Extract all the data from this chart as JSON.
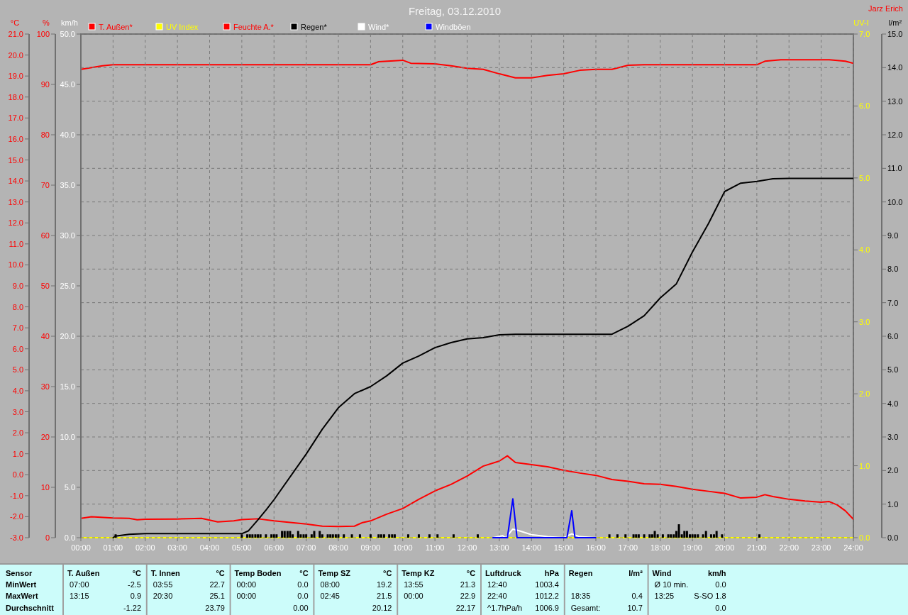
{
  "chart_data": [
    {
      "type": "line",
      "title": "Freitag, 03.12.2010",
      "xlim": [
        0,
        24
      ],
      "tick_labels": "y",
      "legend": "top",
      "marker": "none",
      "line_style": "solid",
      "ylabel": "°C",
      "ylim": [
        -3,
        21
      ],
      "yticks": [
        {
          "value": -3,
          "label": "-3.0"
        },
        {
          "value": -2,
          "label": "-2.0"
        },
        {
          "value": -1,
          "label": "-1.0"
        },
        {
          "value": 0,
          "label": "0.0"
        },
        {
          "value": 1,
          "label": "1.0"
        },
        {
          "value": 2,
          "label": "2.0"
        },
        {
          "value": 3,
          "label": "3.0"
        },
        {
          "value": 4,
          "label": "4.0"
        },
        {
          "value": 5,
          "label": "5.0"
        },
        {
          "value": 6,
          "label": "6.0"
        },
        {
          "value": 7,
          "label": "7.0"
        },
        {
          "value": 8,
          "label": "8.0"
        },
        {
          "value": 9,
          "label": "9.0"
        },
        {
          "value": 10,
          "label": "10.0"
        },
        {
          "value": 11,
          "label": "11.0"
        },
        {
          "value": 12,
          "label": "12.0"
        },
        {
          "value": 13,
          "label": "13.0"
        },
        {
          "value": 14,
          "label": "14.0"
        },
        {
          "value": 15,
          "label": "15.0"
        },
        {
          "value": 16,
          "label": "16.0"
        },
        {
          "value": 17,
          "label": "17.0"
        },
        {
          "value": 18,
          "label": "18.0"
        },
        {
          "value": 19,
          "label": "19.0"
        },
        {
          "value": 20,
          "label": "20.0"
        },
        {
          "value": 21,
          "label": "21.0"
        }
      ],
      "y2label": "UV-I",
      "y2lim": [
        0,
        7
      ],
      "y2ticks": [
        {
          "value": 0,
          "label": "0.0"
        },
        {
          "value": 1,
          "label": "1.0"
        },
        {
          "value": 2,
          "label": "2.0"
        },
        {
          "value": 3,
          "label": "3.0"
        },
        {
          "value": 4,
          "label": "4.0"
        },
        {
          "value": 5,
          "label": "5.0"
        },
        {
          "value": 6,
          "label": "6.0"
        },
        {
          "value": 7,
          "label": "7.0"
        }
      ],
      "y3label": "%",
      "y3lim": [
        0,
        100
      ],
      "y3ticks": [
        0,
        10,
        20,
        30,
        40,
        50,
        60,
        70,
        80,
        90,
        100
      ],
      "series": [
        {
          "name": "T. Außen*",
          "color": "#ff0000",
          "x": [
            0,
            0.33,
            1,
            1.5,
            1.75,
            2,
            3,
            3.75,
            4.25,
            4.75,
            5,
            5.5,
            6,
            6.5,
            7,
            7.5,
            8,
            8.5,
            8.75,
            9,
            9.5,
            10,
            10.5,
            11,
            11.5,
            12,
            12.5,
            13,
            13.25,
            13.5,
            14,
            14.5,
            15,
            15.5,
            16,
            16.5,
            17,
            17.5,
            18,
            18.5,
            19,
            19.5,
            20,
            20.5,
            21,
            21.25,
            21.5,
            22,
            22.5,
            23,
            23.25,
            23.5,
            23.75,
            24
          ],
          "values": [
            -2.08,
            -2.0,
            -2.06,
            -2.08,
            -2.15,
            -2.12,
            -2.11,
            -2.08,
            -2.25,
            -2.2,
            -2.14,
            -2.1,
            -2.2,
            -2.27,
            -2.35,
            -2.45,
            -2.47,
            -2.45,
            -2.28,
            -2.2,
            -1.88,
            -1.61,
            -1.17,
            -0.77,
            -0.46,
            -0.06,
            0.41,
            0.65,
            0.9,
            0.58,
            0.48,
            0.38,
            0.21,
            0.08,
            -0.03,
            -0.23,
            -0.31,
            -0.43,
            -0.46,
            -0.56,
            -0.69,
            -0.79,
            -0.89,
            -1.11,
            -1.07,
            -0.95,
            -1.04,
            -1.17,
            -1.25,
            -1.31,
            -1.28,
            -1.44,
            -1.72,
            -2.12
          ]
        },
        {
          "name": "UV Index",
          "color": "#ffff00",
          "axis": "y2",
          "x": [
            0,
            1,
            2,
            3,
            4,
            5,
            6,
            7,
            8,
            9,
            10,
            11,
            12,
            13,
            14,
            15,
            16,
            17,
            18,
            19,
            20,
            21,
            22,
            23,
            24
          ],
          "values": [
            0,
            0,
            0,
            0,
            0,
            0,
            0,
            0,
            0,
            0,
            0,
            0,
            0,
            0,
            0,
            0,
            0,
            0,
            0,
            0,
            0,
            0,
            0,
            0,
            0
          ]
        },
        {
          "name": "Feuchte A.*",
          "color": "#ff0000",
          "axis": "y3",
          "x": [
            0,
            0.67,
            1,
            9,
            9.25,
            10,
            10.25,
            11,
            11.5,
            12,
            12.5,
            13,
            13.5,
            14,
            14.5,
            15,
            15.5,
            16,
            16.5,
            17,
            17.5,
            21,
            21.25,
            21.75,
            23.25,
            23.75,
            24
          ],
          "values": [
            93.0,
            93.7,
            93.9,
            93.9,
            94.5,
            94.8,
            94.2,
            94.1,
            93.7,
            93.2,
            93.0,
            92.1,
            91.3,
            91.3,
            91.8,
            92.1,
            92.8,
            93.0,
            93.0,
            93.8,
            93.9,
            93.9,
            94.6,
            94.9,
            94.9,
            94.6,
            94.2
          ]
        }
      ],
      "annotations": [
        "Jarz Erich",
        "Sensor",
        "MinWert",
        "MaxWert",
        "Durchschnitt",
        "T. Außen",
        "°C",
        "07:00",
        "-2.5",
        "13:15",
        "0.9",
        null,
        "-1.22",
        "T. Innen",
        "°C",
        "03:55",
        "22.7",
        "20:30",
        "25.1",
        null,
        "23.79",
        "Temp Boden",
        "°C",
        "00:00",
        "0.0",
        "00:00",
        "0.0",
        null,
        "0.00",
        "Temp SZ",
        "°C",
        "08:00",
        "19.2",
        "02:45",
        "21.5",
        null,
        "20.12",
        "Temp KZ",
        "°C",
        "13:55",
        "21.3",
        "00:00",
        "22.9",
        null,
        "22.17",
        "Luftdruck",
        "hPa",
        "12:40",
        "1003.4",
        "22:40",
        "1012.2",
        "^1.7hPa/h",
        "1006.9",
        "Regen",
        "l/m²",
        null,
        null,
        "18:35",
        "0.4",
        "Gesamt:",
        "10.7",
        "Wind",
        "km/h",
        "Ø 10 min.",
        "0.0",
        "13:25",
        "S-SO 1.8",
        null,
        "0.0"
      ]
    },
    {
      "type": "line",
      "xlim": [
        0,
        24
      ],
      "legend": "top",
      "grid": true,
      "marker": "none",
      "line_style": "solid",
      "xticks": [
        {
          "value": 0,
          "label": "00:00"
        },
        {
          "value": 1,
          "label": "01:00"
        },
        {
          "value": 2,
          "label": "02:00"
        },
        {
          "value": 3,
          "label": "03:00"
        },
        {
          "value": 4,
          "label": "04:00"
        },
        {
          "value": 5,
          "label": "05:00"
        },
        {
          "value": 6,
          "label": "06:00"
        },
        {
          "value": 7,
          "label": "07:00"
        },
        {
          "value": 8,
          "label": "08:00"
        },
        {
          "value": 9,
          "label": "09:00"
        },
        {
          "value": 10,
          "label": "10:00"
        },
        {
          "value": 11,
          "label": "11:00"
        },
        {
          "value": 12,
          "label": "12:00"
        },
        {
          "value": 13,
          "label": "13:00"
        },
        {
          "value": 14,
          "label": "14:00"
        },
        {
          "value": 15,
          "label": "15:00"
        },
        {
          "value": 16,
          "label": "16:00"
        },
        {
          "value": 17,
          "label": "17:00"
        },
        {
          "value": 18,
          "label": "18:00"
        },
        {
          "value": 19,
          "label": "19:00"
        },
        {
          "value": 20,
          "label": "20:00"
        },
        {
          "value": 21,
          "label": "21:00"
        },
        {
          "value": 22,
          "label": "22:00"
        },
        {
          "value": 23,
          "label": "23:00"
        },
        {
          "value": 24,
          "label": "24:00"
        }
      ],
      "ylabel": "l/m²",
      "ylim": [
        0,
        15
      ],
      "yticks": [
        {
          "value": 0,
          "label": "0.0"
        },
        {
          "value": 1,
          "label": "1.0"
        },
        {
          "value": 2,
          "label": "2.0"
        },
        {
          "value": 3,
          "label": "3.0"
        },
        {
          "value": 4,
          "label": "4.0"
        },
        {
          "value": 5,
          "label": "5.0"
        },
        {
          "value": 6,
          "label": "6.0"
        },
        {
          "value": 7,
          "label": "7.0"
        },
        {
          "value": 8,
          "label": "8.0"
        },
        {
          "value": 9,
          "label": "9.0"
        },
        {
          "value": 10,
          "label": "10.0"
        },
        {
          "value": 11,
          "label": "11.0"
        },
        {
          "value": 12,
          "label": "12.0"
        },
        {
          "value": 13,
          "label": "13.0"
        },
        {
          "value": 14,
          "label": "14.0"
        },
        {
          "value": 15,
          "label": "15.0"
        }
      ],
      "y2label": "km/h",
      "y2lim": [
        0,
        50
      ],
      "y2ticks": [
        {
          "value": 0,
          "label": "0.0"
        },
        {
          "value": 5,
          "label": "5.0"
        },
        {
          "value": 10,
          "label": "10.0"
        },
        {
          "value": 15,
          "label": "15.0"
        },
        {
          "value": 20,
          "label": "20.0"
        },
        {
          "value": 25,
          "label": "25.0"
        },
        {
          "value": 30,
          "label": "30.0"
        },
        {
          "value": 35,
          "label": "35.0"
        },
        {
          "value": 40,
          "label": "40.0"
        },
        {
          "value": 45,
          "label": "45.0"
        },
        {
          "value": 50,
          "label": "50.0"
        }
      ],
      "series": [
        {
          "name": "Regen*",
          "color": "#000000",
          "x": [
            1,
            1.08,
            1.5,
            2,
            5,
            5.2,
            5.5,
            5.75,
            6,
            7,
            7.5,
            8,
            8.5,
            9,
            9.5,
            10,
            10.5,
            11,
            11.5,
            12,
            12.5,
            13,
            13.5,
            16.5,
            17,
            17.5,
            18,
            18.5,
            19,
            19.5,
            20,
            20.5,
            21,
            21.5,
            22,
            24
          ],
          "values": [
            0,
            0.05,
            0.1,
            0.12,
            0.12,
            0.2,
            0.53,
            0.82,
            1.13,
            2.49,
            3.23,
            3.87,
            4.29,
            4.5,
            4.82,
            5.2,
            5.41,
            5.66,
            5.81,
            5.92,
            5.96,
            6.04,
            6.06,
            6.06,
            6.3,
            6.61,
            7.14,
            7.56,
            8.51,
            9.36,
            10.31,
            10.56,
            10.61,
            10.69,
            10.7,
            10.7
          ]
        },
        {
          "name": "Wind*",
          "color": "#ffffff",
          "axis": "y2",
          "x": [
            12.8,
            13.1,
            13.2,
            13.42,
            13.6,
            14,
            14.5,
            15,
            15.25,
            15.5,
            16
          ],
          "values": [
            0,
            0.2,
            0,
            0.85,
            0.7,
            0.3,
            0.1,
            0,
            0.38,
            0.1,
            0
          ]
        },
        {
          "name": "Windböen",
          "color": "#0000ff",
          "axis": "y2",
          "x": [
            12.8,
            13.25,
            13.42,
            13.55,
            15.1,
            15.25,
            15.35,
            16
          ],
          "values": [
            0,
            0,
            3.85,
            0,
            0,
            2.68,
            0,
            0
          ]
        },
        {
          "type": "bar",
          "color": "#000000",
          "x": [
            1.08,
            5.0,
            5.17,
            5.25,
            5.33,
            5.42,
            5.5,
            5.58,
            5.75,
            5.92,
            6.0,
            6.08,
            6.25,
            6.33,
            6.42,
            6.5,
            6.58,
            6.75,
            6.83,
            6.92,
            7.0,
            7.17,
            7.25,
            7.42,
            7.5,
            7.67,
            7.75,
            7.83,
            7.92,
            8.0,
            8.17,
            8.42,
            8.67,
            9.0,
            9.25,
            9.33,
            9.42,
            9.58,
            9.67,
            9.75,
            10.17,
            10.5,
            10.83,
            11.08,
            11.58,
            12.33,
            16.42,
            16.67,
            16.92,
            17.17,
            17.25,
            17.33,
            17.5,
            17.67,
            17.75,
            17.83,
            17.92,
            18.08,
            18.25,
            18.33,
            18.42,
            18.5,
            18.58,
            18.67,
            18.75,
            18.83,
            18.92,
            19.0,
            19.08,
            19.17,
            19.33,
            19.42,
            19.58,
            19.67,
            19.75,
            19.92,
            21.08
          ],
          "values": [
            0.1,
            0.1,
            0.1,
            0.1,
            0.1,
            0.1,
            0.1,
            0.1,
            0.1,
            0.1,
            0.1,
            0.1,
            0.2,
            0.2,
            0.2,
            0.2,
            0.1,
            0.2,
            0.1,
            0.1,
            0.1,
            0.1,
            0.2,
            0.2,
            0.1,
            0.1,
            0.1,
            0.1,
            0.1,
            0.1,
            0.1,
            0.1,
            0.1,
            0.1,
            0.1,
            0.1,
            0.1,
            0.1,
            0.1,
            0.1,
            0.1,
            0.1,
            0.1,
            0.1,
            0.1,
            0.1,
            0.1,
            0.1,
            0.1,
            0.1,
            0.1,
            0.1,
            0.1,
            0.1,
            0.1,
            0.2,
            0.1,
            0.1,
            0.1,
            0.1,
            0.1,
            0.2,
            0.4,
            0.1,
            0.2,
            0.2,
            0.1,
            0.1,
            0.1,
            0.1,
            0.1,
            0.2,
            0.1,
            0.1,
            0.2,
            0.1,
            0.1
          ]
        }
      ]
    }
  ]
}
